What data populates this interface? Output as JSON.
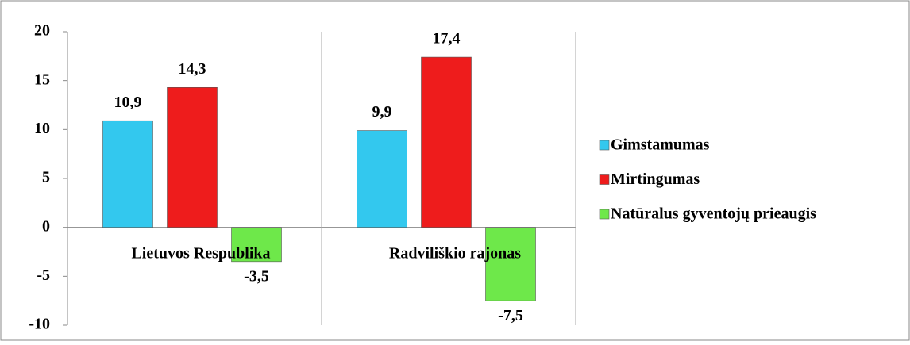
{
  "chart_data": {
    "type": "bar",
    "categories": [
      "Lietuvos Respublika",
      "Radviliškio rajonas"
    ],
    "series": [
      {
        "name": "Gimstamumas",
        "color": "#33c8ee",
        "values": [
          10.9,
          9.9
        ],
        "value_labels": [
          "10,9",
          "9,9"
        ]
      },
      {
        "name": "Mirtingumas",
        "color": "#ee1c1c",
        "values": [
          14.3,
          17.4
        ],
        "value_labels": [
          "14,3",
          "17,4"
        ]
      },
      {
        "name": "Natūralus gyventojų prieaugis",
        "color": "#6ee84a",
        "values": [
          -3.5,
          -7.5
        ],
        "value_labels": [
          "-3,5",
          "-7,5"
        ]
      }
    ],
    "ylim": [
      -10,
      20
    ],
    "yticks": [
      -10,
      -5,
      0,
      5,
      10,
      15,
      20
    ],
    "legend": "right"
  }
}
